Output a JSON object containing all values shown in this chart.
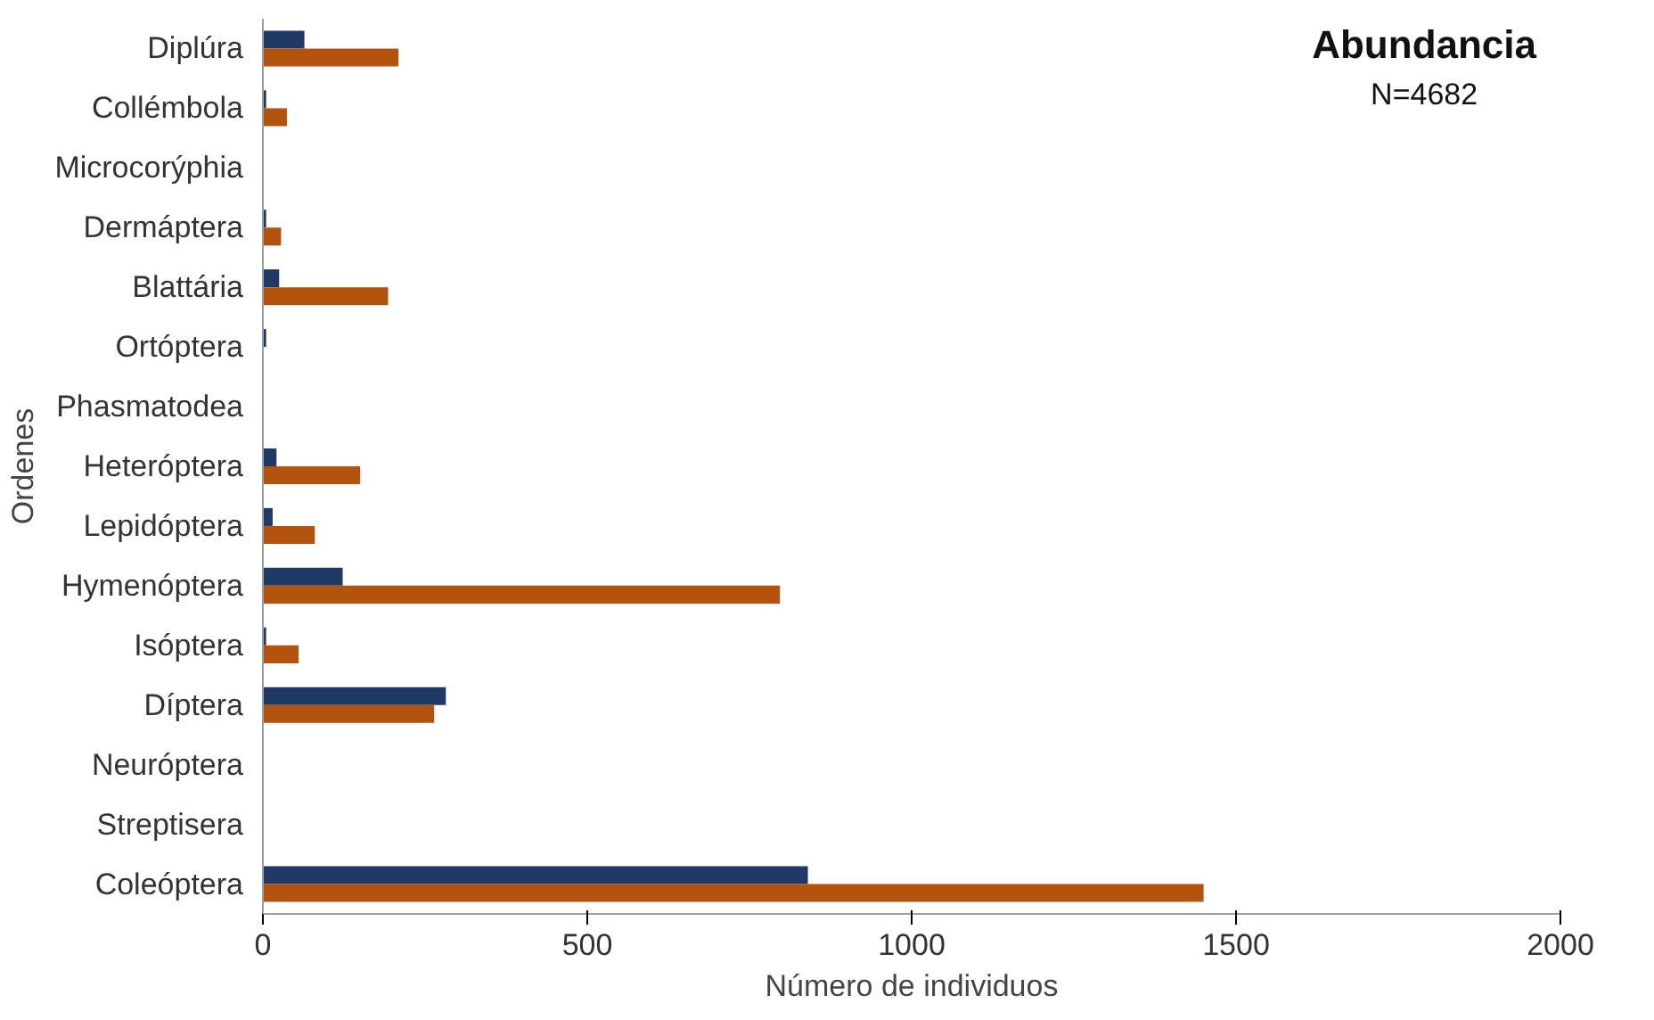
{
  "chart_data": {
    "type": "bar",
    "orientation": "horizontal",
    "xlabel": "Número de individuos",
    "ylabel": "Ordenes",
    "annotations": [
      "Abundancia",
      "N=4682"
    ],
    "categories": [
      "Diplúra",
      "Collémbola",
      "Microcorýphia",
      "Dermáptera",
      "Blattária",
      "Ortóptera",
      "Phasmatodea",
      "Heteróptera",
      "Lepidóptera",
      "Hymenóptera",
      "Isóptera",
      "Díptera",
      "Neuróptera",
      "Streptisera",
      "Coleóptera"
    ],
    "series": [
      {
        "color": "#1f3864",
        "values": [
          64,
          5,
          0,
          5,
          25,
          5,
          0,
          21,
          15,
          123,
          5,
          282,
          0,
          0,
          840
        ]
      },
      {
        "color": "#b4530e",
        "values": [
          209,
          37,
          0,
          28,
          193,
          null,
          0,
          150,
          80,
          797,
          55,
          264,
          0,
          0,
          1450
        ]
      }
    ],
    "xlim": [
      0,
      2000
    ],
    "xticks": [
      0,
      500,
      1000,
      1500,
      2000
    ],
    "grid": false
  }
}
